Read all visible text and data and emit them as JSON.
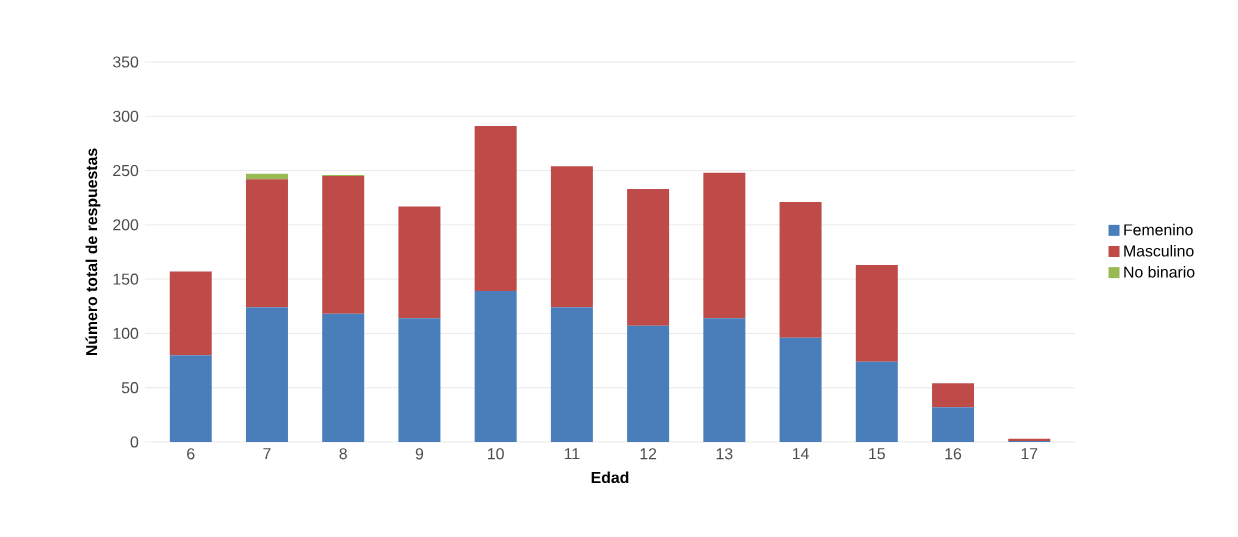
{
  "chart_data": {
    "type": "bar",
    "stacked": true,
    "xlabel": "Edad",
    "ylabel": "Número total de respuestas",
    "categories": [
      "6",
      "7",
      "8",
      "9",
      "10",
      "11",
      "12",
      "13",
      "14",
      "15",
      "16",
      "17"
    ],
    "series": [
      {
        "name": "Femenino",
        "color": "#4a7ebb",
        "values": [
          80,
          124,
          118,
          114,
          139,
          124,
          107,
          114,
          96,
          74,
          32,
          1
        ]
      },
      {
        "name": "Masculino",
        "color": "#be4b48",
        "values": [
          77,
          118,
          127,
          103,
          152,
          130,
          126,
          134,
          125,
          89,
          22,
          2
        ]
      },
      {
        "name": "No binario",
        "color": "#98b954",
        "values": [
          0,
          5,
          1,
          0,
          0,
          0,
          0,
          0,
          0,
          0,
          0,
          0
        ]
      }
    ],
    "ylim": [
      0,
      350
    ],
    "yticks": [
      0,
      50,
      100,
      150,
      200,
      250,
      300,
      350
    ],
    "grid": "y",
    "legend": "right"
  }
}
